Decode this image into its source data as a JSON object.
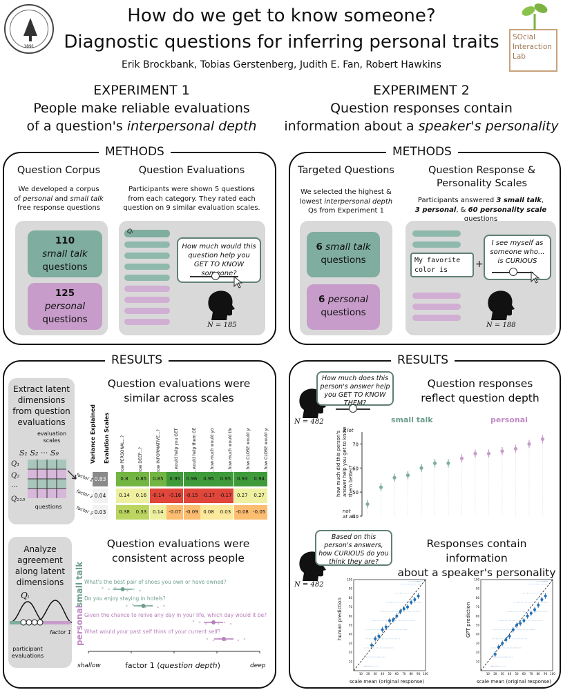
{
  "header": {
    "title_line1": "How do we get to know someone?",
    "title_line2": "Diagnostic questions for inferring personal traits",
    "authors": "Erik Brockbank, Tobias Gerstenberg, Judith E. Fan, Robert Hawkins",
    "lab_logo_line1": "SOcial",
    "lab_logo_line2": "Interaction",
    "lab_logo_line3": "Lab",
    "seal_text": "LELAND STANFORD JUNIOR UNIVERSITY",
    "seal_year": "1891"
  },
  "exp1": {
    "heading": "EXPERIMENT 1",
    "subtitle_line1": "People make reliable evaluations",
    "subtitle_pre": "of a question's ",
    "subtitle_em": "interpersonal depth"
  },
  "exp2": {
    "heading": "EXPERIMENT 2",
    "subtitle_line1": "Question responses contain",
    "subtitle_pre": "information about a ",
    "subtitle_em": "speaker's personality"
  },
  "methods1": {
    "tag": "METHODS",
    "corpus_heading": "Question Corpus",
    "corpus_l1": "We developed a corpus",
    "corpus_l2a": "of ",
    "corpus_l2b": "personal",
    "corpus_l2c": " and ",
    "corpus_l2d": "small talk",
    "corpus_l3": "free response questions",
    "smalltalk_count": "110",
    "smalltalk_l1": "small talk",
    "smalltalk_l2": "questions",
    "personal_count": "125",
    "personal_l1": "personal",
    "personal_l2": "questions",
    "eval_heading": "Question Evaluations",
    "eval_l1": "Participants were shown 5 questions",
    "eval_l2": "from each category.  They rated each",
    "eval_l3": "question on 9 similar evaluation scales.",
    "q_label": "Qᵢ",
    "bubble": "How much would this question help you GET TO KNOW someone?",
    "n": "N = 185"
  },
  "methods2": {
    "tag": "METHODS",
    "targeted_heading": "Targeted Questions",
    "targeted_l1": "We selected the highest &",
    "targeted_l2a": "lowest ",
    "targeted_l2b": "interpersonal depth",
    "targeted_l3": "Qs from Experiment 1",
    "st_count": "6",
    "st_label": "small talk",
    "st_l2": "questions",
    "p_count": "6",
    "p_label": "personal",
    "p_l2": "questions",
    "resp_heading_l1": "Question Response &",
    "resp_heading_l2": "Personality Scales",
    "resp_l1": "Participants answered ",
    "resp_l1b": "3 small talk",
    "resp_l1c": ",",
    "resp_l2a": "3 personal",
    "resp_l2b": ", & ",
    "resp_l2c": "60 personality scale",
    "resp_l2d": " questions",
    "typed_l1": "My favorite",
    "typed_l2": "color is",
    "plus": "+",
    "bubble": "I see myself as someone who... is CURIOUS",
    "n": "N = 188"
  },
  "results1": {
    "tag": "RESULTS",
    "extract_text": "Extract latent dimensions from question evaluations",
    "eval_scales": "evaluation scales",
    "s1": "S₁",
    "s2": "S₂",
    "sdots": "···",
    "s9": "S₉",
    "q1": "Q₁",
    "q2": "Q₂",
    "qdots": "···",
    "q215": "Q₂₁₅",
    "questions_lbl": "questions",
    "heading1_l1": "Question evaluations were",
    "heading1_l2": "similar across scales",
    "var_label": "Variance Explained",
    "scales_label": "Evalution Scales",
    "scale_names": [
      "how PERSONAL...?",
      "how DEEP...?",
      "how INFORMATIVE...?",
      "...would help you GET TO KNOW them?",
      "...would help them GET TO KNOW you?",
      "...how much would you LEARN about them?",
      "...how much would they LEARN about you?",
      "...how CLOSE would you feel after hearing their answer?",
      "...how CLOSE would you feel after sharing your answer?"
    ],
    "factors": [
      {
        "label": "factor 1",
        "variance": "0.83",
        "loadings": [
          "0.8",
          "0.85",
          "0.85",
          "0.95",
          "0.96",
          "0.95",
          "0.95",
          "0.93",
          "0.94"
        ]
      },
      {
        "label": "factor 2",
        "variance": "0.04",
        "loadings": [
          "0.14",
          "0.16",
          "-0.14",
          "-0.16",
          "-0.15",
          "-0.17",
          "-0.17",
          "0.27",
          "0.27"
        ]
      },
      {
        "label": "factor 3",
        "variance": "0.03",
        "loadings": [
          "0.38",
          "0.33",
          "0.14",
          "-0.07",
          "-0.09",
          "0.08",
          "0.03",
          "-0.08",
          "-0.05"
        ]
      }
    ],
    "analyze_text": "Analyze agreement along latent dimensions",
    "qi": "Qᵢ",
    "factor1": "factor 1",
    "participant_evals": "participant evaluations",
    "heading2_l1": "Question evaluations were",
    "heading2_l2": "consistent across people",
    "small_talk_side": "small talk",
    "personal_side": "personal",
    "agreement": [
      {
        "group": "small talk",
        "question": "What's the best pair of shoes you own or have owned?",
        "mean": 20
      },
      {
        "group": "small talk",
        "question": "Do you enjoy staying in hotels?",
        "mean": 32
      },
      {
        "group": "personal",
        "question": "Given the chance to relive any day in your life, which day would it be?",
        "mean": 73
      },
      {
        "group": "personal",
        "question": "What would your past self think of your current self?",
        "mean": 79
      }
    ],
    "x_ticks": [
      "0",
      "25",
      "50",
      "75",
      "100"
    ],
    "x_left": "shallow",
    "x_right": "deep",
    "xlabel_pre": "factor 1 (",
    "xlabel_em": "question depth",
    "xlabel_post": ")"
  },
  "results2": {
    "tag": "RESULTS",
    "bubble1": "How much does this person's answer help you GET TO KNOW THEM?",
    "n1": "N = 482",
    "heading1_l1": "Question responses",
    "heading1_l2": "reflect question depth",
    "small_talk_lbl": "small talk",
    "personal_lbl": "personal",
    "y_top": "a lot",
    "y_bottom": "not at all",
    "y_ticks": [
      "70",
      "60",
      "50",
      "40"
    ],
    "ylabel": "how much did this person's answer help you get to know them better?",
    "bubble2": "Based on this person's answers, how CURIOUS do you think they are?",
    "n2": "N = 482",
    "heading2_l1": "Responses contain information",
    "heading2_l2": "about a speaker's personality",
    "human_ylabel": "human prediction",
    "gpt_ylabel": "GPT prediction",
    "scatter_xlabel": "scale mean (original response)",
    "scatter_ticks": [
      "10",
      "20",
      "30",
      "40",
      "50",
      "60",
      "70",
      "80",
      "90",
      "100"
    ]
  },
  "chart_data": [
    {
      "type": "bar",
      "title": "Question responses reflect question depth",
      "ylabel": "how much did this person's answer help you get to know them better?",
      "ylim": [
        40,
        75
      ],
      "series": [
        {
          "name": "small talk",
          "values": [
            45,
            52,
            56,
            57,
            60,
            62,
            62
          ]
        },
        {
          "name": "personal",
          "values": [
            64,
            66,
            66,
            67,
            68,
            70,
            72
          ]
        }
      ]
    },
    {
      "type": "scatter",
      "xlabel": "scale mean (original response)",
      "ylabel": "human prediction",
      "x": [
        25,
        30,
        35,
        40,
        45,
        50,
        55,
        60,
        65,
        70,
        75,
        80,
        85,
        90
      ],
      "y": [
        28,
        35,
        38,
        45,
        48,
        55,
        56,
        60,
        65,
        68,
        70,
        75,
        78,
        82
      ]
    },
    {
      "type": "scatter",
      "xlabel": "scale mean (original response)",
      "ylabel": "GPT prediction",
      "x": [
        20,
        25,
        30,
        35,
        40,
        45,
        50,
        55,
        60,
        65,
        70,
        75,
        80,
        85,
        90
      ],
      "y": [
        18,
        26,
        30,
        34,
        38,
        45,
        50,
        52,
        55,
        60,
        63,
        67,
        72,
        78,
        82
      ]
    }
  ]
}
